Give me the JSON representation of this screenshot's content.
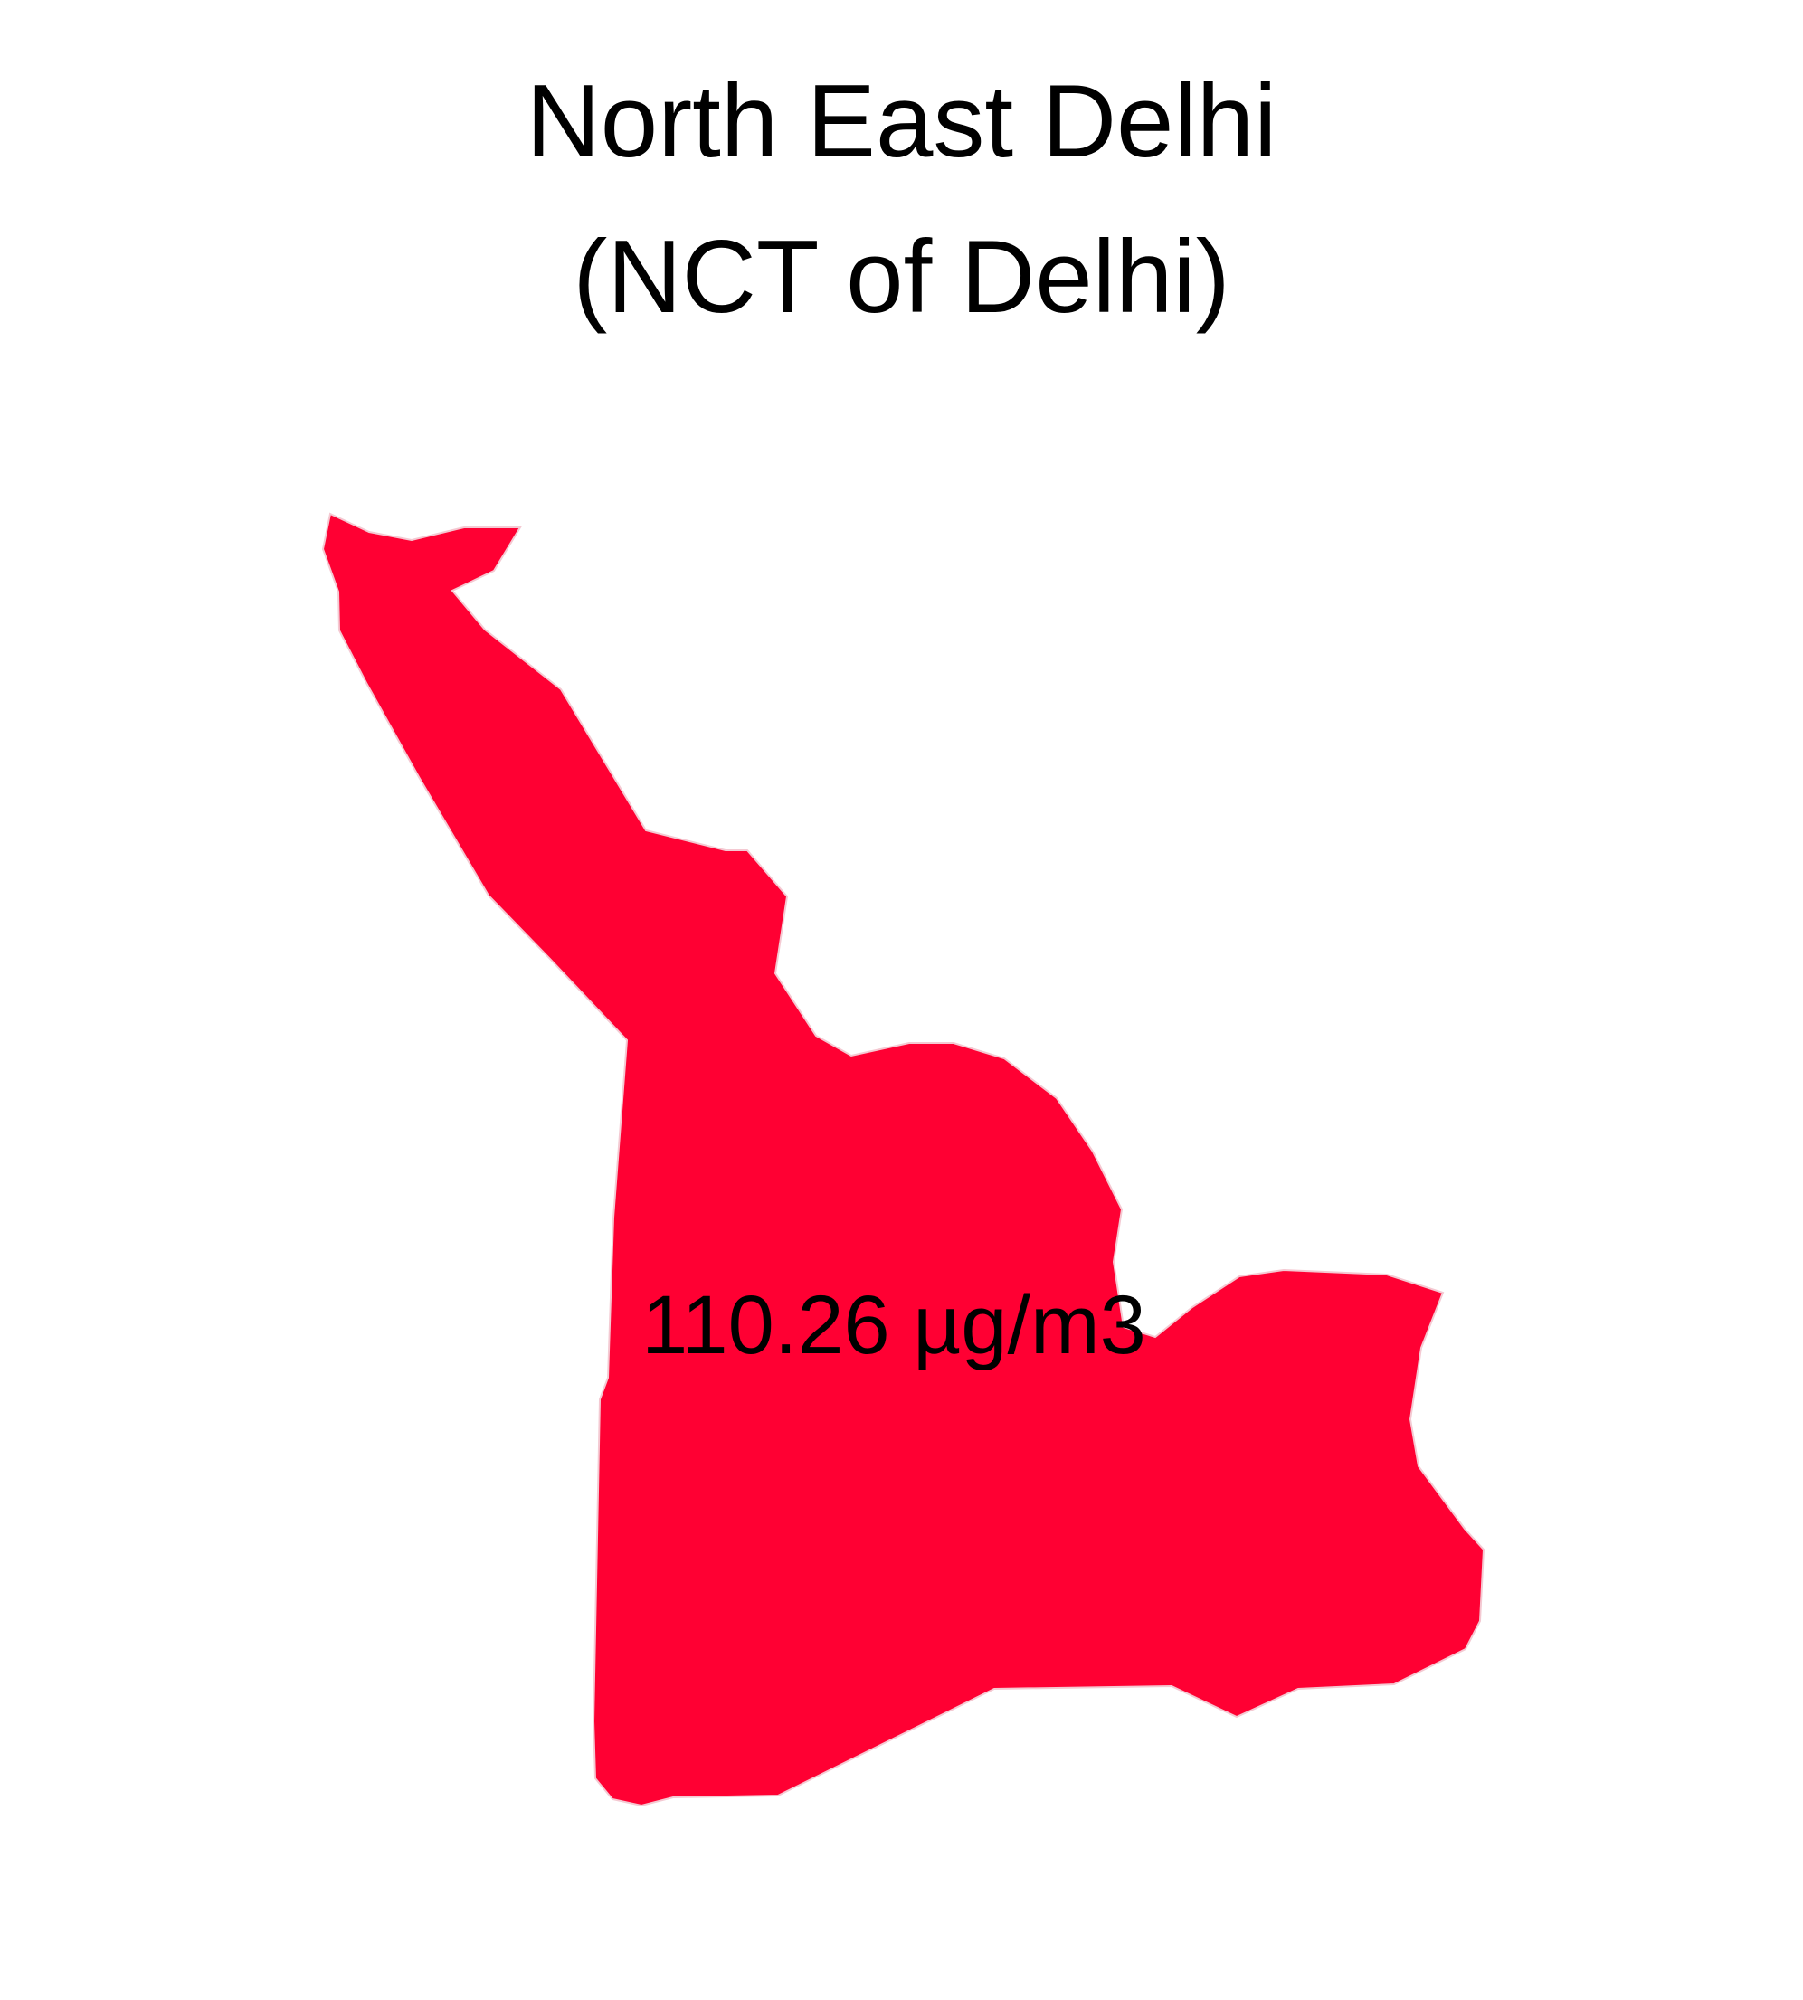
{
  "map": {
    "title_line_1": "North East Delhi",
    "title_line_2": "(NCT of Delhi)",
    "region_label": "110.26 µg/m3",
    "fill_color": "#FF0033",
    "text_color": "#000000"
  }
}
